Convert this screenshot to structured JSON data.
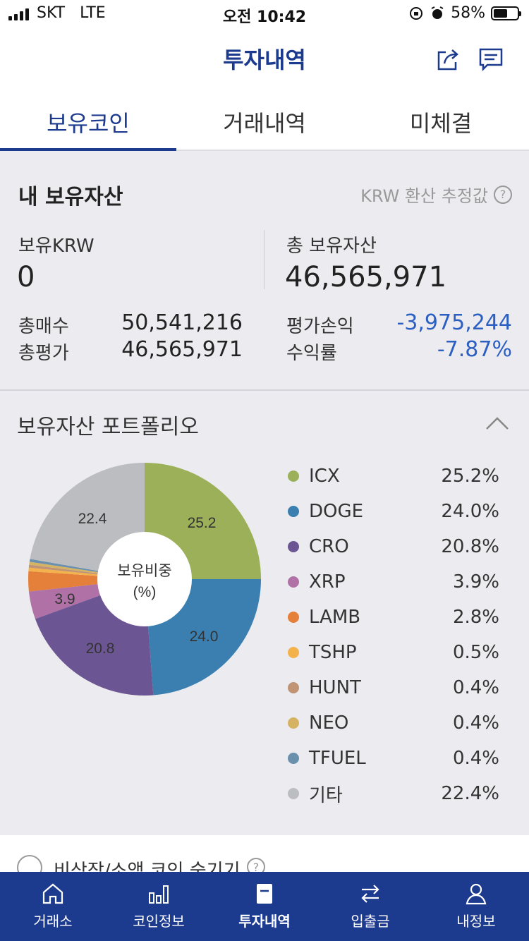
{
  "status_bar": {
    "carrier": "SKT",
    "network": "LTE",
    "time": "오전 10:42",
    "battery": "58%",
    "battery_level": 0.58
  },
  "header": {
    "title": "투자내역",
    "share_icon": "share-icon",
    "chat_icon": "chat-icon"
  },
  "tabs": [
    {
      "label": "보유코인",
      "active": true
    },
    {
      "label": "거래내역",
      "active": false
    },
    {
      "label": "미체결",
      "active": false
    }
  ],
  "assets": {
    "heading": "내 보유자산",
    "krw_note": "KRW 환산 추정값",
    "holding_krw_label": "보유KRW",
    "holding_krw_value": "0",
    "total_assets_label": "총 보유자산",
    "total_assets_value": "46,565,971",
    "total_buy_label": "총매수",
    "total_buy_value": "50,541,216",
    "total_eval_label": "총평가",
    "total_eval_value": "46,565,971",
    "pnl_label": "평가손익",
    "pnl_value": "-3,975,244",
    "return_label": "수익률",
    "return_value": "-7.87%"
  },
  "portfolio": {
    "heading": "보유자산 포트폴리오",
    "center_label_1": "보유비중",
    "center_label_2": "(%)",
    "slice_labels": [
      "25.2",
      "24.0",
      "20.8",
      "3.9",
      "22.4"
    ],
    "legend": [
      {
        "name": "ICX",
        "pct": "25.2%",
        "color": "#9bb058"
      },
      {
        "name": "DOGE",
        "pct": "24.0%",
        "color": "#3a7fb0"
      },
      {
        "name": "CRO",
        "pct": "20.8%",
        "color": "#6c5593"
      },
      {
        "name": "XRP",
        "pct": "3.9%",
        "color": "#b071a6"
      },
      {
        "name": "LAMB",
        "pct": "2.8%",
        "color": "#e5803a"
      },
      {
        "name": "TSHP",
        "pct": "0.5%",
        "color": "#f3b24b"
      },
      {
        "name": "HUNT",
        "pct": "0.4%",
        "color": "#c09374"
      },
      {
        "name": "NEO",
        "pct": "0.4%",
        "color": "#d6b363"
      },
      {
        "name": "TFUEL",
        "pct": "0.4%",
        "color": "#6a90ad"
      },
      {
        "name": "기타",
        "pct": "22.4%",
        "color": "#bcbdc1"
      }
    ]
  },
  "chart_data": {
    "type": "pie",
    "categories": [
      "ICX",
      "DOGE",
      "CRO",
      "XRP",
      "LAMB",
      "TSHP",
      "HUNT",
      "NEO",
      "TFUEL",
      "기타"
    ],
    "values": [
      25.2,
      24.0,
      20.8,
      3.9,
      2.8,
      0.5,
      0.4,
      0.4,
      0.4,
      22.4
    ]
  },
  "hide_option": {
    "label": "비상장/소액 코인 숨기기"
  },
  "bottom_nav": [
    {
      "label": "거래소",
      "icon": "home-icon",
      "active": false
    },
    {
      "label": "코인정보",
      "icon": "bar-chart-icon",
      "active": false
    },
    {
      "label": "투자내역",
      "icon": "document-icon",
      "active": true
    },
    {
      "label": "입출금",
      "icon": "transfer-icon",
      "active": false
    },
    {
      "label": "내정보",
      "icon": "person-icon",
      "active": false
    }
  ]
}
